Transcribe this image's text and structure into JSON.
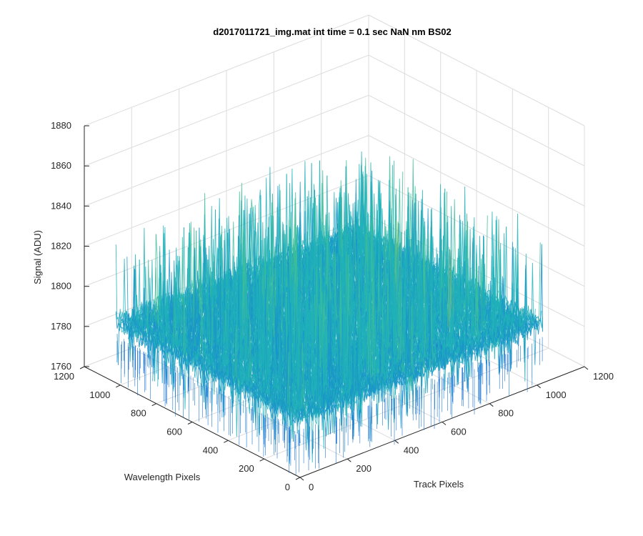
{
  "chart_data": {
    "type": "surface",
    "title": "d2017011721_img.mat int time = 0.1 sec  NaN nm BS02",
    "xlabel": "Track Pixels",
    "ylabel": "Wavelength Pixels",
    "zlabel": "Signal (ADU)",
    "xlim": [
      0,
      1200
    ],
    "ylim": [
      0,
      1200
    ],
    "zlim": [
      1760,
      1880
    ],
    "x_ticks": [
      "0",
      "200",
      "400",
      "600",
      "800",
      "1000",
      "1200"
    ],
    "y_ticks": [
      "0",
      "200",
      "400",
      "600",
      "800",
      "1000",
      "1200"
    ],
    "z_ticks": [
      "1760",
      "1780",
      "1800",
      "1820",
      "1840",
      "1860",
      "1880"
    ],
    "x_extent": [
      0,
      1024
    ],
    "y_extent": [
      0,
      1024
    ],
    "signal_mean": 1790,
    "signal_range": [
      1765,
      1850
    ],
    "grid": true,
    "colormap": [
      "#1f78d4",
      "#1a96c8",
      "#20b0b8",
      "#3cbd9a",
      "#77c37a",
      "#b4c65a",
      "#dcc640"
    ]
  }
}
